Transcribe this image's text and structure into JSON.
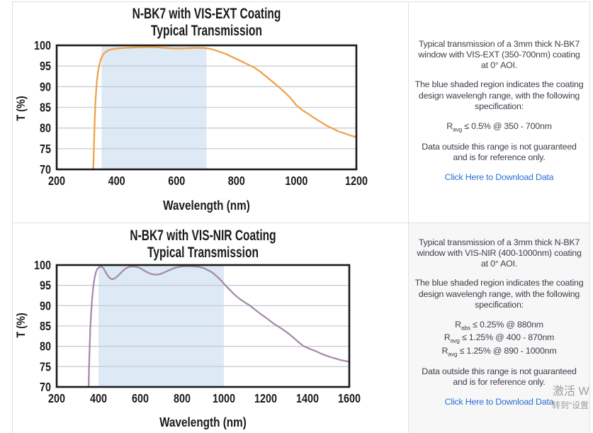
{
  "panels": [
    {
      "p1": "Typical transmission of a 3mm thick N-BK7 window with VIS-EXT (350-700nm) coating at 0° AOI.",
      "p2": "The blue shaded region indicates the coating design wavelengh range, with the following specification:",
      "specs": [
        {
          "prefix": "R",
          "sub": "avg",
          "rest": " ≤ 0.5% @ 350 - 700nm"
        }
      ],
      "p3": "Data outside this range is not guaranteed and is for reference only.",
      "link": "Click Here to Download Data"
    },
    {
      "p1": "Typical transmission of a 3mm thick N-BK7 window with VIS-NIR (400-1000nm) coating at 0° AOI.",
      "p2": "The blue shaded region indicates the coating design wavelengh range, with the following specification:",
      "specs": [
        {
          "prefix": "R",
          "sub": "abs",
          "rest": " ≤ 0.25% @ 880nm"
        },
        {
          "prefix": "R",
          "sub": "avg",
          "rest": " ≤ 1.25% @ 400 - 870nm"
        },
        {
          "prefix": "R",
          "sub": "avg",
          "rest": " ≤ 1.25% @ 890 - 1000nm"
        }
      ],
      "p3": "Data outside this range is not guaranteed and is for reference only.",
      "link": "Click Here to Download Data"
    }
  ],
  "watermark": {
    "line1": "激活 W",
    "line2": "转到“设置"
  },
  "chart_data": [
    {
      "type": "line",
      "title_line1": "N-BK7 with VIS-EXT Coating",
      "title_line2": "Typical Transmission",
      "xlabel": "Wavelength (nm)",
      "ylabel": "T (%)",
      "xlim": [
        200,
        1200
      ],
      "ylim": [
        70,
        100
      ],
      "xticks": [
        200,
        400,
        600,
        800,
        1000,
        1200
      ],
      "yticks": [
        70,
        75,
        80,
        85,
        90,
        95,
        100
      ],
      "grid": true,
      "grid_color": "#c9cdd3",
      "frame_color": "#1a1a1a",
      "line_color": "#f0a24b",
      "shaded_region": {
        "x0": 350,
        "x1": 700,
        "color": "#dde9f4"
      },
      "series": [
        {
          "name": "Transmission",
          "points": [
            [
              321,
              64
            ],
            [
              322,
              70
            ],
            [
              324,
              75
            ],
            [
              326,
              80
            ],
            [
              329,
              86
            ],
            [
              333,
              90.5
            ],
            [
              337,
              93.2
            ],
            [
              342,
              95.2
            ],
            [
              348,
              96.8
            ],
            [
              354,
              97.7
            ],
            [
              360,
              98.2
            ],
            [
              370,
              98.7
            ],
            [
              380,
              99.0
            ],
            [
              395,
              99.2
            ],
            [
              410,
              99.3
            ],
            [
              430,
              99.4
            ],
            [
              450,
              99.45
            ],
            [
              470,
              99.5
            ],
            [
              490,
              99.55
            ],
            [
              510,
              99.6
            ],
            [
              530,
              99.55
            ],
            [
              550,
              99.45
            ],
            [
              570,
              99.35
            ],
            [
              590,
              99.25
            ],
            [
              610,
              99.25
            ],
            [
              630,
              99.3
            ],
            [
              650,
              99.35
            ],
            [
              670,
              99.4
            ],
            [
              690,
              99.35
            ],
            [
              705,
              99.25
            ],
            [
              720,
              99.0
            ],
            [
              735,
              98.7
            ],
            [
              750,
              98.3
            ],
            [
              765,
              97.9
            ],
            [
              780,
              97.4
            ],
            [
              800,
              96.7
            ],
            [
              820,
              96.0
            ],
            [
              840,
              95.3
            ],
            [
              860,
              94.6
            ],
            [
              880,
              93.6
            ],
            [
              900,
              92.4
            ],
            [
              920,
              91.2
            ],
            [
              940,
              90.0
            ],
            [
              960,
              88.7
            ],
            [
              980,
              87.3
            ],
            [
              1000,
              85.5
            ],
            [
              1020,
              84.3
            ],
            [
              1040,
              83.4
            ],
            [
              1060,
              82.4
            ],
            [
              1080,
              81.5
            ],
            [
              1100,
              80.6
            ],
            [
              1120,
              79.9
            ],
            [
              1140,
              79.2
            ],
            [
              1160,
              78.7
            ],
            [
              1180,
              78.2
            ],
            [
              1200,
              77.8
            ]
          ]
        }
      ]
    },
    {
      "type": "line",
      "title_line1": "N-BK7 with VIS-NIR Coating",
      "title_line2": "Typical Transmission",
      "xlabel": "Wavelength (nm)",
      "ylabel": "T (%)",
      "xlim": [
        200,
        1600
      ],
      "ylim": [
        70,
        100
      ],
      "xticks": [
        200,
        400,
        600,
        800,
        1000,
        1200,
        1400,
        1600
      ],
      "yticks": [
        70,
        75,
        80,
        85,
        90,
        95,
        100
      ],
      "grid": true,
      "grid_color": "#c9cdd3",
      "frame_color": "#1a1a1a",
      "line_color": "#a58caa",
      "shaded_region": {
        "x0": 400,
        "x1": 1000,
        "color": "#dde9f4"
      },
      "series": [
        {
          "name": "Transmission",
          "points": [
            [
              352,
              64
            ],
            [
              353,
              70
            ],
            [
              355,
              75
            ],
            [
              358,
              80
            ],
            [
              361,
              84.5
            ],
            [
              365,
              88.5
            ],
            [
              370,
              92
            ],
            [
              376,
              95
            ],
            [
              382,
              97
            ],
            [
              388,
              98.3
            ],
            [
              394,
              99.0
            ],
            [
              400,
              99.35
            ],
            [
              406,
              99.55
            ],
            [
              412,
              99.6
            ],
            [
              418,
              99.5
            ],
            [
              425,
              99.1
            ],
            [
              433,
              98.4
            ],
            [
              442,
              97.6
            ],
            [
              451,
              97.0
            ],
            [
              460,
              96.6
            ],
            [
              468,
              96.5
            ],
            [
              477,
              96.7
            ],
            [
              488,
              97.1
            ],
            [
              500,
              97.7
            ],
            [
              513,
              98.4
            ],
            [
              526,
              99.0
            ],
            [
              539,
              99.4
            ],
            [
              552,
              99.6
            ],
            [
              565,
              99.65
            ],
            [
              578,
              99.6
            ],
            [
              591,
              99.4
            ],
            [
              604,
              99.1
            ],
            [
              617,
              98.7
            ],
            [
              630,
              98.3
            ],
            [
              643,
              98.0
            ],
            [
              656,
              97.75
            ],
            [
              668,
              97.65
            ],
            [
              680,
              97.65
            ],
            [
              693,
              97.75
            ],
            [
              706,
              98.0
            ],
            [
              720,
              98.3
            ],
            [
              735,
              98.65
            ],
            [
              750,
              99.0
            ],
            [
              766,
              99.3
            ],
            [
              782,
              99.5
            ],
            [
              800,
              99.65
            ],
            [
              820,
              99.72
            ],
            [
              840,
              99.72
            ],
            [
              860,
              99.65
            ],
            [
              880,
              99.55
            ],
            [
              900,
              99.3
            ],
            [
              920,
              98.85
            ],
            [
              940,
              98.3
            ],
            [
              958,
              97.6
            ],
            [
              975,
              96.8
            ],
            [
              990,
              96.0
            ],
            [
              1000,
              95.4
            ],
            [
              1015,
              94.6
            ],
            [
              1030,
              93.8
            ],
            [
              1045,
              93.0
            ],
            [
              1060,
              92.3
            ],
            [
              1080,
              91.5
            ],
            [
              1100,
              90.8
            ],
            [
              1120,
              90.2
            ],
            [
              1140,
              89.4
            ],
            [
              1160,
              88.6
            ],
            [
              1180,
              87.8
            ],
            [
              1200,
              87.1
            ],
            [
              1220,
              86.3
            ],
            [
              1240,
              85.5
            ],
            [
              1260,
              84.9
            ],
            [
              1280,
              84.2
            ],
            [
              1300,
              83.5
            ],
            [
              1320,
              82.7
            ],
            [
              1340,
              81.8
            ],
            [
              1360,
              80.9
            ],
            [
              1380,
              80.1
            ],
            [
              1400,
              79.6
            ],
            [
              1420,
              79.2
            ],
            [
              1440,
              78.8
            ],
            [
              1460,
              78.3
            ],
            [
              1480,
              77.9
            ],
            [
              1500,
              77.5
            ],
            [
              1520,
              77.2
            ],
            [
              1540,
              76.9
            ],
            [
              1560,
              76.6
            ],
            [
              1580,
              76.4
            ],
            [
              1600,
              76.2
            ]
          ]
        }
      ]
    }
  ]
}
